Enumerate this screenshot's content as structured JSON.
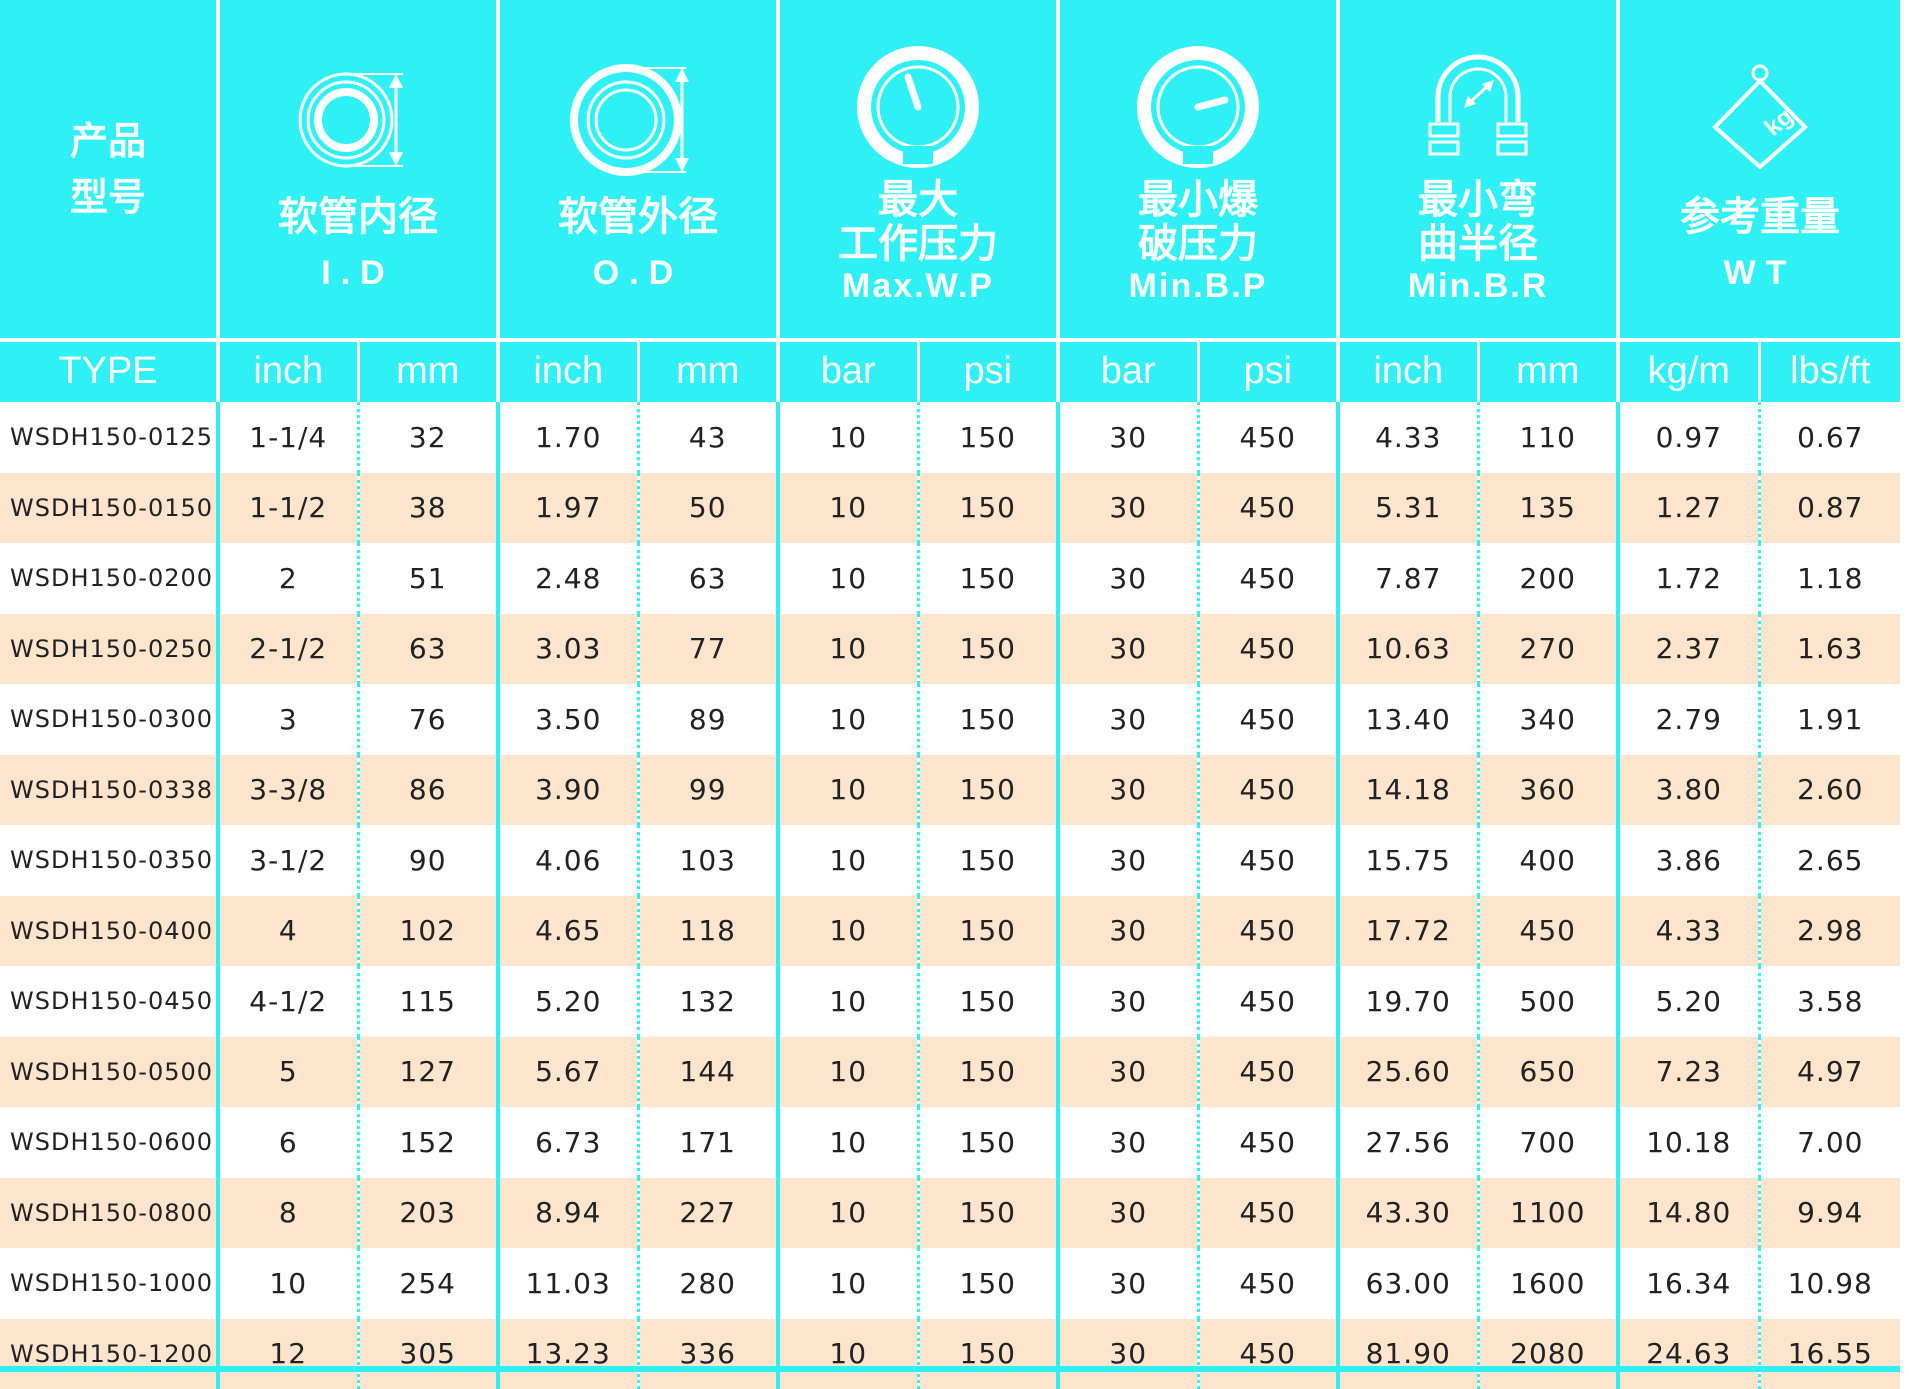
{
  "header": {
    "type_title_line1": "产品",
    "type_title_line2": "型号",
    "groups": [
      {
        "cn": "软管内径",
        "en": "I.D",
        "icon": "inner-diameter-icon"
      },
      {
        "cn": "软管外径",
        "en": "O.D",
        "icon": "outer-diameter-icon"
      },
      {
        "cn": "最大\n工作压力",
        "en": "Max.W.P",
        "icon": "pressure-gauge-high-icon"
      },
      {
        "cn": "最小爆\n破压力",
        "en": "Min.B.P",
        "icon": "pressure-gauge-low-icon"
      },
      {
        "cn": "最小弯\n曲半径",
        "en": "Min.B.R",
        "icon": "bend-radius-icon"
      },
      {
        "cn": "参考重量",
        "en": "WT",
        "icon": "weight-kg-icon"
      }
    ],
    "units": [
      "TYPE",
      "inch",
      "mm",
      "inch",
      "mm",
      "bar",
      "psi",
      "bar",
      "psi",
      "inch",
      "mm",
      "kg/m",
      "lbs/ft"
    ]
  },
  "colors": {
    "accent": "#2ff0f4",
    "alt_row": "#fde4cd",
    "text": "#222222"
  },
  "rows": [
    [
      "WSDH150-0125",
      "1-1/4",
      "32",
      "1.70",
      "43",
      "10",
      "150",
      "30",
      "450",
      "4.33",
      "110",
      "0.97",
      "0.67"
    ],
    [
      "WSDH150-0150",
      "1-1/2",
      "38",
      "1.97",
      "50",
      "10",
      "150",
      "30",
      "450",
      "5.31",
      "135",
      "1.27",
      "0.87"
    ],
    [
      "WSDH150-0200",
      "2",
      "51",
      "2.48",
      "63",
      "10",
      "150",
      "30",
      "450",
      "7.87",
      "200",
      "1.72",
      "1.18"
    ],
    [
      "WSDH150-0250",
      "2-1/2",
      "63",
      "3.03",
      "77",
      "10",
      "150",
      "30",
      "450",
      "10.63",
      "270",
      "2.37",
      "1.63"
    ],
    [
      "WSDH150-0300",
      "3",
      "76",
      "3.50",
      "89",
      "10",
      "150",
      "30",
      "450",
      "13.40",
      "340",
      "2.79",
      "1.91"
    ],
    [
      "WSDH150-0338",
      "3-3/8",
      "86",
      "3.90",
      "99",
      "10",
      "150",
      "30",
      "450",
      "14.18",
      "360",
      "3.80",
      "2.60"
    ],
    [
      "WSDH150-0350",
      "3-1/2",
      "90",
      "4.06",
      "103",
      "10",
      "150",
      "30",
      "450",
      "15.75",
      "400",
      "3.86",
      "2.65"
    ],
    [
      "WSDH150-0400",
      "4",
      "102",
      "4.65",
      "118",
      "10",
      "150",
      "30",
      "450",
      "17.72",
      "450",
      "4.33",
      "2.98"
    ],
    [
      "WSDH150-0450",
      "4-1/2",
      "115",
      "5.20",
      "132",
      "10",
      "150",
      "30",
      "450",
      "19.70",
      "500",
      "5.20",
      "3.58"
    ],
    [
      "WSDH150-0500",
      "5",
      "127",
      "5.67",
      "144",
      "10",
      "150",
      "30",
      "450",
      "25.60",
      "650",
      "7.23",
      "4.97"
    ],
    [
      "WSDH150-0600",
      "6",
      "152",
      "6.73",
      "171",
      "10",
      "150",
      "30",
      "450",
      "27.56",
      "700",
      "10.18",
      "7.00"
    ],
    [
      "WSDH150-0800",
      "8",
      "203",
      "8.94",
      "227",
      "10",
      "150",
      "30",
      "450",
      "43.30",
      "1100",
      "14.80",
      "9.94"
    ],
    [
      "WSDH150-1000",
      "10",
      "254",
      "11.03",
      "280",
      "10",
      "150",
      "30",
      "450",
      "63.00",
      "1600",
      "16.34",
      "10.98"
    ],
    [
      "WSDH150-1200",
      "12",
      "305",
      "13.23",
      "336",
      "10",
      "150",
      "30",
      "450",
      "81.90",
      "2080",
      "24.63",
      "16.55"
    ]
  ]
}
